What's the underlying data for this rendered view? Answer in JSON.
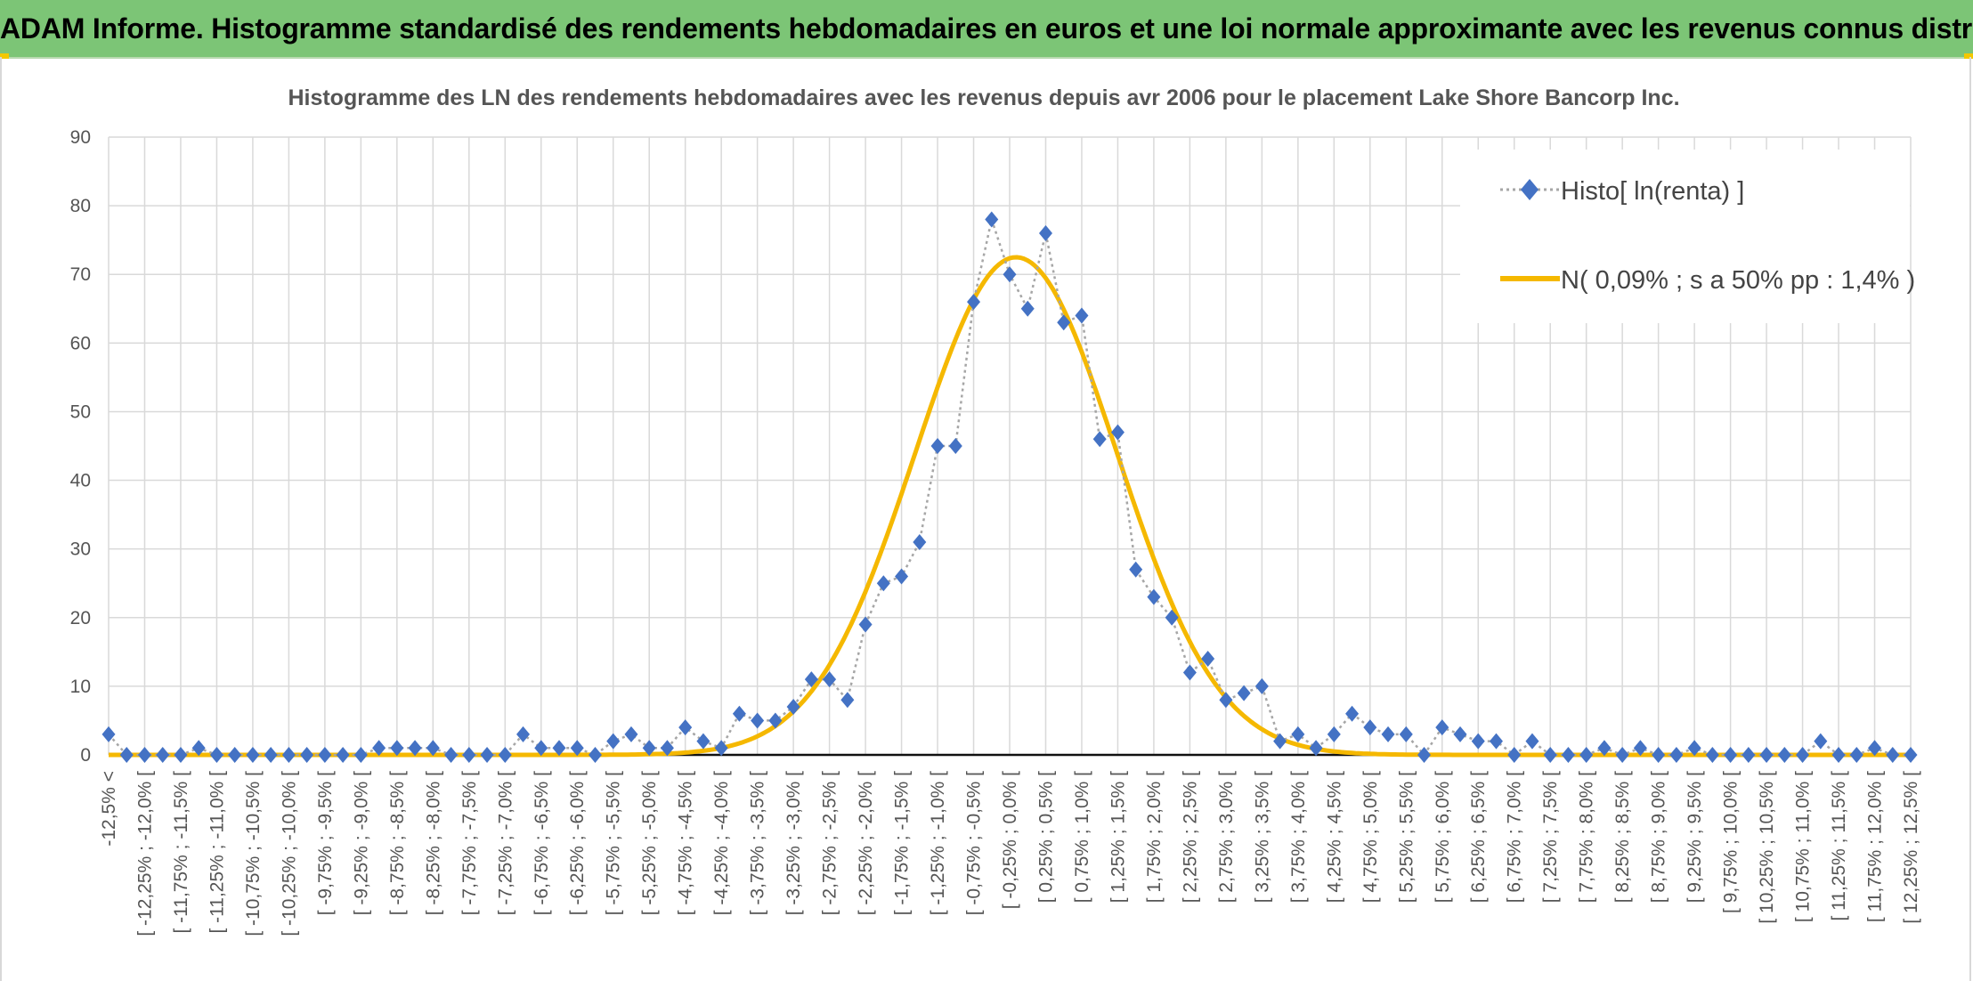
{
  "header": {
    "title": "ADAM Informe. Histogramme standardisé des rendements hebdomadaires en euros et une loi normale approximante avec les revenus connus distribués"
  },
  "colors": {
    "banner": "#7cc576",
    "histo": "#4472c4",
    "normal": "#f5b800",
    "grid": "#d9d9d9"
  },
  "chart_data": {
    "type": "line",
    "title": "Histogramme des LN des rendements hebdomadaires avec les revenus depuis avr 2006 pour le placement Lake Shore Bancorp Inc.",
    "xlabel": "",
    "ylabel": "",
    "ylim": [
      0,
      90
    ],
    "yticks": [
      0,
      10,
      20,
      30,
      40,
      50,
      60,
      70,
      80,
      90
    ],
    "grid": true,
    "legend_position": "top-right",
    "categories": [
      "-12,5% <",
      "[ -12,25% ; -12,0% [",
      "[ -11,75% ; -11,5% [",
      "[ -11,25% ; -11,0% [",
      "[ -10,75% ; -10,5% [",
      "[ -10,25% ; -10,0% [",
      "[ -9,75% ; -9,5% [",
      "[ -9,25% ; -9,0% [",
      "[ -8,75% ; -8,5% [",
      "[ -8,25% ; -8,0% [",
      "[ -7,75% ; -7,5% [",
      "[ -7,25% ; -7,0% [",
      "[ -6,75% ; -6,5% [",
      "[ -6,25% ; -6,0% [",
      "[ -5,75% ; -5,5% [",
      "[ -5,25% ; -5,0% [",
      "[ -4,75% ; -4,5% [",
      "[ -4,25% ; -4,0% [",
      "[ -3,75% ; -3,5% [",
      "[ -3,25% ; -3,0% [",
      "[ -2,75% ; -2,5% [",
      "[ -2,25% ; -2,0% [",
      "[ -1,75% ; -1,5% [",
      "[ -1,25% ; -1,0% [",
      "[ -0,75% ; -0,5% [",
      "[ -0,25% ; 0,0% [",
      "[ 0,25% ; 0,5% [",
      "[ 0,75% ; 1,0% [",
      "[ 1,25% ; 1,5% [",
      "[ 1,75% ; 2,0% [",
      "[ 2,25% ; 2,5% [",
      "[ 2,75% ; 3,0% [",
      "[ 3,25% ; 3,5% [",
      "[ 3,75% ; 4,0% [",
      "[ 4,25% ; 4,5% [",
      "[ 4,75% ; 5,0% [",
      "[ 5,25% ; 5,5% [",
      "[ 5,75% ; 6,0% [",
      "[ 6,25% ; 6,5% [",
      "[ 6,75% ; 7,0% [",
      "[ 7,25% ; 7,5% [",
      "[ 7,75% ; 8,0% [",
      "[ 8,25% ; 8,5% [",
      "[ 8,75% ; 9,0% [",
      "[ 9,25% ; 9,5% [",
      "[ 9,75% ; 10,0% [",
      "[ 10,25% ; 10,5% [",
      "[ 10,75% ; 11,0% [",
      "[ 11,25% ; 11,5% [",
      "[ 11,75% ; 12,0% [",
      "[ 12,25% ; 12,5% ["
    ],
    "series": [
      {
        "name": "Histo[ ln(renta) ]",
        "style": "dotted-line-diamond-markers",
        "color": "#4472c4",
        "x": [
          -12.5,
          -12.25,
          -12,
          -11.75,
          -11.5,
          -11.25,
          -11,
          -10.75,
          -10.5,
          -10.25,
          -10,
          -9.75,
          -9.5,
          -9.25,
          -9,
          -8.75,
          -8.5,
          -8.25,
          -8,
          -7.75,
          -7.5,
          -7.25,
          -7,
          -6.75,
          -6.5,
          -6.25,
          -6,
          -5.75,
          -5.5,
          -5.25,
          -5,
          -4.75,
          -4.5,
          -4.25,
          -4,
          -3.75,
          -3.5,
          -3.25,
          -3,
          -2.75,
          -2.5,
          -2.25,
          -2,
          -1.75,
          -1.5,
          -1.25,
          -1,
          -0.75,
          -0.5,
          -0.25,
          0,
          0.25,
          0.5,
          0.75,
          1,
          1.25,
          1.5,
          1.75,
          2,
          2.25,
          2.5,
          2.75,
          3,
          3.25,
          3.5,
          3.75,
          4,
          4.25,
          4.5,
          4.75,
          5,
          5.25,
          5.5,
          5.75,
          6,
          6.25,
          6.5,
          6.75,
          7,
          7.25,
          7.5,
          7.75,
          8,
          8.25,
          8.5,
          8.75,
          9,
          9.25,
          9.5,
          9.75,
          10,
          10.25,
          10.5,
          10.75,
          11,
          11.25,
          11.5,
          11.75,
          12,
          12.25,
          12.5
        ],
        "values": [
          3,
          0,
          0,
          0,
          0,
          1,
          0,
          0,
          0,
          0,
          0,
          0,
          0,
          0,
          0,
          1,
          1,
          1,
          1,
          0,
          0,
          0,
          0,
          3,
          1,
          1,
          1,
          0,
          2,
          3,
          1,
          1,
          4,
          2,
          1,
          6,
          5,
          5,
          7,
          11,
          11,
          8,
          19,
          25,
          26,
          31,
          45,
          45,
          66,
          78,
          70,
          65,
          76,
          63,
          64,
          46,
          47,
          27,
          23,
          20,
          12,
          14,
          8,
          9,
          10,
          2,
          3,
          1,
          3,
          6,
          4,
          3,
          3,
          0,
          4,
          3,
          2,
          2,
          0,
          2,
          0,
          0,
          0,
          1,
          0,
          1,
          0,
          0,
          1,
          0,
          0,
          0,
          0,
          0,
          0,
          2,
          0,
          0,
          1,
          0,
          0
        ]
      },
      {
        "name": "N( 0,09% ; s a 50% pp : 1,4% )",
        "style": "solid-line",
        "color": "#f5b800",
        "mean": 0.09,
        "sd": 1.4,
        "peak": 72.5,
        "x": [
          -12.5,
          -5,
          -4.5,
          -4,
          -3.5,
          -3,
          -2.5,
          -2,
          -1.5,
          -1,
          -0.5,
          0,
          0.5,
          1,
          1.5,
          2,
          2.5,
          3,
          3.5,
          4,
          4.5,
          5,
          12.5
        ],
        "values": [
          0,
          0,
          0.1,
          0.8,
          2.3,
          6,
          13.3,
          25.1,
          40.8,
          57.2,
          69.1,
          72.4,
          66.4,
          52.9,
          36.5,
          21.8,
          11.2,
          5,
          1.9,
          0.6,
          0.2,
          0,
          0
        ]
      }
    ]
  }
}
